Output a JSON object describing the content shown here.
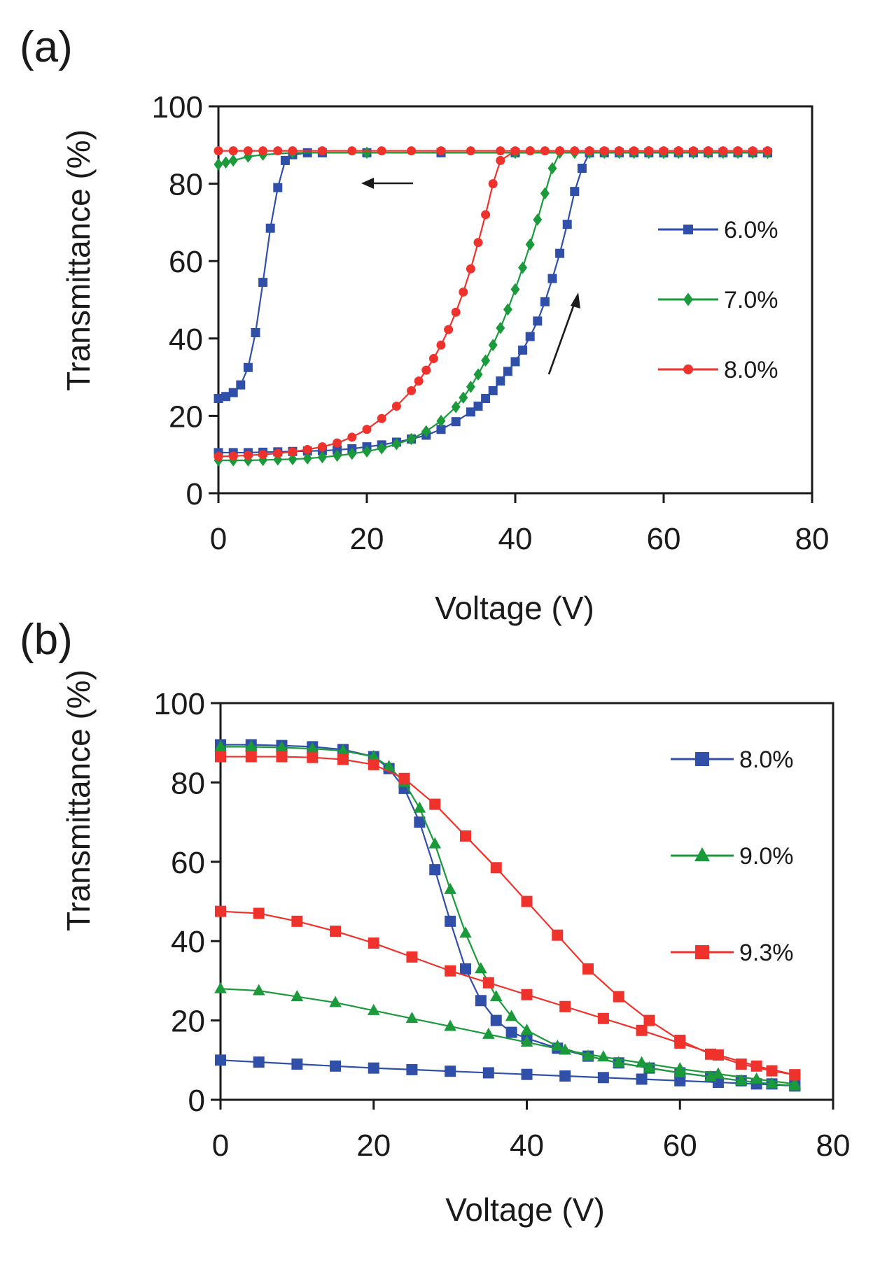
{
  "colors": {
    "blue": "#2f4fa8",
    "green": "#1a9a3a",
    "red": "#f0322c",
    "axis": "#1a1a1a"
  },
  "chart_data": [
    {
      "panel_label": "(a)",
      "type": "line",
      "xlabel": "Voltage (V)",
      "ylabel": "Transmittance (%)",
      "xlim": [
        0,
        80
      ],
      "ylim": [
        0,
        100
      ],
      "xticks": [
        0,
        20,
        40,
        60,
        80
      ],
      "yticks": [
        0,
        20,
        40,
        60,
        80,
        100
      ],
      "grid": false,
      "legend_position": "right",
      "annotations": [
        "arrow pointing up along increasing-voltage branch near 45 V",
        "arrow pointing left along decreasing-voltage branch near 20 V"
      ],
      "series": [
        {
          "name": "6.0%",
          "color": "#2f4fa8",
          "marker": "square",
          "x": [
            0,
            2,
            4,
            6,
            8,
            10,
            12,
            14,
            16,
            18,
            20,
            22,
            24,
            26,
            28,
            30,
            32,
            34,
            35,
            36,
            37,
            38,
            39,
            40,
            41,
            42,
            43,
            44,
            45,
            46,
            47,
            48,
            49,
            50,
            52,
            54,
            56,
            58,
            60,
            62,
            64,
            66,
            68,
            70,
            72,
            74
          ],
          "y": [
            10.5,
            10.5,
            10.5,
            10.6,
            10.7,
            10.8,
            10.9,
            11,
            11.2,
            11.5,
            12,
            12.5,
            13.2,
            14,
            15,
            16.5,
            18.5,
            21,
            22.5,
            24.5,
            26.5,
            29,
            31.5,
            34,
            37,
            40.5,
            44.5,
            49.5,
            55.5,
            62,
            69.5,
            78,
            84,
            88,
            88,
            88,
            88,
            88,
            88,
            88,
            88,
            88,
            88,
            88,
            88,
            88
          ]
        },
        {
          "name": "6.0% (decreasing)",
          "color": "#2f4fa8",
          "marker": "square",
          "x": [
            74,
            60,
            50,
            40,
            30,
            20,
            14,
            12,
            10,
            9,
            8,
            7,
            6,
            5,
            4,
            3,
            2,
            1,
            0
          ],
          "y": [
            88,
            88,
            88,
            88,
            88,
            88,
            88,
            88,
            87.5,
            86,
            79,
            68.5,
            54.5,
            41.5,
            32.5,
            28,
            26,
            25,
            24.5
          ]
        },
        {
          "name": "7.0%",
          "color": "#1a9a3a",
          "marker": "diamond",
          "x": [
            0,
            2,
            4,
            6,
            8,
            10,
            12,
            14,
            16,
            18,
            20,
            22,
            24,
            26,
            28,
            30,
            32,
            33,
            34,
            35,
            36,
            37,
            38,
            39,
            40,
            41,
            42,
            43,
            44,
            45,
            46,
            48,
            50,
            52,
            54,
            56,
            58,
            60,
            62,
            64,
            66,
            68,
            70,
            72,
            74
          ],
          "y": [
            8.5,
            8.5,
            8.5,
            8.6,
            8.7,
            8.8,
            9,
            9.3,
            9.7,
            10.2,
            10.8,
            11.6,
            12.7,
            14,
            16,
            18.7,
            22.3,
            24.7,
            27.5,
            30.7,
            34.3,
            38.3,
            42.7,
            47.5,
            52.7,
            58.3,
            64.3,
            70.7,
            77.5,
            84,
            88,
            88,
            88,
            88,
            88,
            88,
            88,
            88,
            88,
            88,
            88,
            88,
            88,
            88,
            88
          ]
        },
        {
          "name": "7.0% (decreasing)",
          "color": "#1a9a3a",
          "marker": "diamond",
          "x": [
            74,
            60,
            40,
            20,
            10,
            6,
            4,
            2,
            1,
            0
          ],
          "y": [
            88,
            88,
            88,
            88,
            88,
            87.5,
            87,
            86,
            85.5,
            85
          ]
        },
        {
          "name": "8.0%",
          "color": "#f0322c",
          "marker": "circle",
          "x": [
            0,
            2,
            4,
            6,
            8,
            10,
            12,
            14,
            16,
            18,
            20,
            22,
            24,
            26,
            27,
            28,
            29,
            30,
            31,
            32,
            33,
            34,
            35,
            36,
            37,
            38,
            40,
            42,
            44,
            46,
            48,
            50,
            52,
            54,
            56,
            58,
            60,
            62,
            64,
            66,
            68,
            70,
            72,
            74
          ],
          "y": [
            9.5,
            9.6,
            9.8,
            10,
            10.3,
            10.7,
            11.3,
            12,
            13,
            14.5,
            16.5,
            19.3,
            22.5,
            26.5,
            29,
            31.8,
            34.8,
            38.3,
            42.3,
            46.8,
            52,
            58,
            64.8,
            72,
            80,
            86,
            88.5,
            88.5,
            88.5,
            88.5,
            88.5,
            88.5,
            88.5,
            88.5,
            88.5,
            88.5,
            88.5,
            88.5,
            88.5,
            88.5,
            88.5,
            88.5,
            88.5,
            88.5
          ]
        },
        {
          "name": "8.0% (decreasing)",
          "color": "#f0322c",
          "marker": "circle",
          "x": [
            74,
            70,
            66,
            62,
            58,
            54,
            50,
            46,
            42,
            38,
            34,
            30,
            26,
            22,
            18,
            14,
            10,
            8,
            6,
            4,
            2,
            0
          ],
          "y": [
            88.5,
            88.5,
            88.5,
            88.5,
            88.5,
            88.5,
            88.5,
            88.5,
            88.5,
            88.5,
            88.5,
            88.5,
            88.5,
            88.5,
            88.5,
            88.5,
            88.5,
            88.5,
            88.5,
            88.5,
            88.5,
            88.5
          ]
        }
      ],
      "legend": [
        {
          "label": "6.0%",
          "color": "#2f4fa8",
          "marker": "square"
        },
        {
          "label": "7.0%",
          "color": "#1a9a3a",
          "marker": "diamond"
        },
        {
          "label": "8.0%",
          "color": "#f0322c",
          "marker": "circle"
        }
      ]
    },
    {
      "panel_label": "(b)",
      "type": "line",
      "xlabel": "Voltage (V)",
      "ylabel": "Transmittance (%)",
      "xlim": [
        0,
        80
      ],
      "ylim": [
        0,
        100
      ],
      "xticks": [
        0,
        20,
        40,
        60,
        80
      ],
      "yticks": [
        0,
        20,
        40,
        60,
        80,
        100
      ],
      "grid": false,
      "legend_position": "top-right",
      "series": [
        {
          "name": "8.0%",
          "color": "#2f4fa8",
          "marker": "square",
          "x": [
            0,
            4,
            8,
            12,
            16,
            20,
            22,
            24,
            26,
            28,
            30,
            32,
            34,
            36,
            38,
            40,
            44,
            48,
            52,
            56,
            60,
            64,
            68,
            72,
            75
          ],
          "y": [
            89.5,
            89.5,
            89.3,
            89,
            88.3,
            86.5,
            83.5,
            78.5,
            70,
            58,
            45,
            33,
            25,
            20,
            17,
            15.5,
            13,
            11,
            9.3,
            8,
            6.8,
            5.8,
            4.8,
            4,
            3.5
          ]
        },
        {
          "name": "8.0% (lower)",
          "color": "#2f4fa8",
          "marker": "square",
          "x": [
            0,
            5,
            10,
            15,
            20,
            25,
            30,
            35,
            40,
            45,
            50,
            55,
            60,
            65,
            70,
            75
          ],
          "y": [
            10,
            9.5,
            9,
            8.5,
            8,
            7.6,
            7.2,
            6.8,
            6.4,
            6,
            5.6,
            5.2,
            4.8,
            4.4,
            4,
            3.5
          ]
        },
        {
          "name": "9.0%",
          "color": "#1a9a3a",
          "marker": "triangle",
          "x": [
            0,
            4,
            8,
            12,
            16,
            20,
            22,
            24,
            26,
            28,
            30,
            32,
            34,
            36,
            38,
            40,
            44,
            48,
            52,
            56,
            60,
            64,
            68,
            72,
            75
          ],
          "y": [
            89,
            89,
            88.8,
            88.5,
            88,
            86.5,
            84,
            80,
            73.5,
            64.5,
            53,
            42,
            33,
            26,
            21,
            17.5,
            13.5,
            11,
            9.3,
            8,
            6.8,
            5.8,
            4.8,
            4,
            3.5
          ]
        },
        {
          "name": "9.0% (lower)",
          "color": "#1a9a3a",
          "marker": "triangle",
          "x": [
            0,
            5,
            10,
            15,
            20,
            25,
            30,
            35,
            40,
            45,
            50,
            55,
            60,
            65,
            70,
            75
          ],
          "y": [
            28,
            27.5,
            26,
            24.5,
            22.5,
            20.5,
            18.5,
            16.5,
            14.5,
            12.5,
            10.8,
            9.3,
            7.8,
            6.5,
            5.2,
            4
          ]
        },
        {
          "name": "9.3%",
          "color": "#f0322c",
          "marker": "square",
          "x": [
            0,
            4,
            8,
            12,
            16,
            20,
            24,
            28,
            32,
            36,
            40,
            44,
            48,
            52,
            56,
            60,
            64,
            68,
            72,
            75
          ],
          "y": [
            86.5,
            86.5,
            86.5,
            86.3,
            85.8,
            84.5,
            81,
            74.5,
            66.5,
            58.5,
            50,
            41.5,
            33,
            26,
            20,
            15,
            11.5,
            9,
            7.3,
            6.3
          ]
        },
        {
          "name": "9.3% (lower)",
          "color": "#f0322c",
          "marker": "square",
          "x": [
            0,
            5,
            10,
            15,
            20,
            25,
            30,
            35,
            40,
            45,
            50,
            55,
            60,
            65,
            70,
            75
          ],
          "y": [
            47.5,
            47,
            45,
            42.5,
            39.5,
            36,
            32.5,
            29.5,
            26.5,
            23.5,
            20.5,
            17.5,
            14.3,
            11.3,
            8.5,
            6.3
          ]
        }
      ],
      "legend": [
        {
          "label": "8.0%",
          "color": "#2f4fa8",
          "marker": "square"
        },
        {
          "label": "9.0%",
          "color": "#1a9a3a",
          "marker": "triangle"
        },
        {
          "label": "9.3%",
          "color": "#f0322c",
          "marker": "square"
        }
      ]
    }
  ]
}
